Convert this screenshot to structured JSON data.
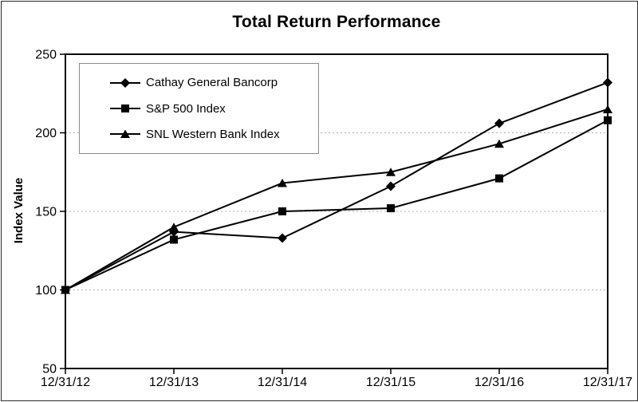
{
  "chart_data": {
    "type": "line",
    "title": "Total Return Performance",
    "xlabel": "",
    "ylabel": "Index Value",
    "categories": [
      "12/31/12",
      "12/31/13",
      "12/31/14",
      "12/31/15",
      "12/31/16",
      "12/31/17"
    ],
    "series": [
      {
        "name": "Cathay General Bancorp",
        "marker": "diamond",
        "values": [
          100,
          137,
          133,
          166,
          206,
          232
        ]
      },
      {
        "name": "S&P 500 Index",
        "marker": "square",
        "values": [
          100,
          132,
          150,
          152,
          171,
          208
        ]
      },
      {
        "name": "SNL Western Bank Index",
        "marker": "triangle",
        "values": [
          100,
          140,
          168,
          175,
          193,
          215
        ]
      }
    ],
    "ylim": [
      50,
      250
    ],
    "yticks": [
      50,
      100,
      150,
      200,
      250
    ],
    "gridlines": [
      100,
      150,
      200
    ],
    "grid": "horizontal-dashed",
    "legend_position": "top-left-inside",
    "colors": {
      "series": "#000000",
      "grid": "#b0b0b0",
      "frame": "#000000",
      "legend_border": "#8c8c8c",
      "background": "#ffffff"
    }
  }
}
